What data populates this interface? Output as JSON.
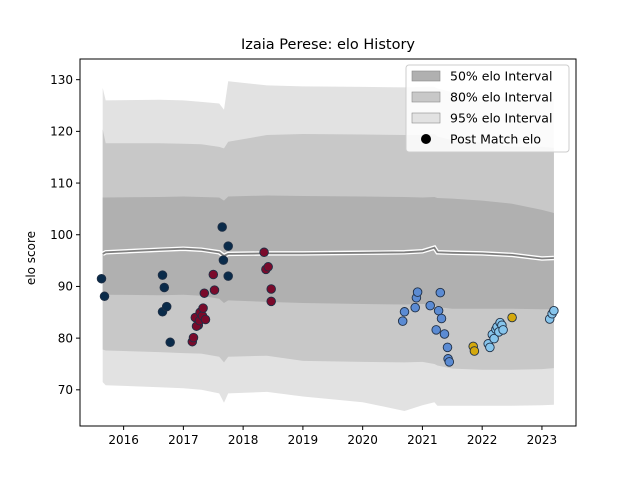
{
  "chart_data": {
    "type": "scatter",
    "title": "Izaia Perese: elo History",
    "ylabel": "elo score",
    "xlabel": "",
    "xlim": [
      2015.27,
      2023.57
    ],
    "ylim": [
      63,
      134
    ],
    "x_ticks": [
      2016,
      2017,
      2018,
      2019,
      2020,
      2021,
      2022,
      2023
    ],
    "x_tick_labels": [
      "2016",
      "2017",
      "2018",
      "2019",
      "2020",
      "2021",
      "2022",
      "2023"
    ],
    "y_ticks": [
      70,
      80,
      90,
      100,
      110,
      120,
      130
    ],
    "y_tick_labels": [
      "70",
      "80",
      "90",
      "100",
      "110",
      "120",
      "130"
    ],
    "legend": {
      "placement": "top-right",
      "entries": [
        "50% elo Interval",
        "80% elo Interval",
        "95% elo Interval",
        "Post Match elo"
      ]
    },
    "colors": {
      "band50": "#b0b0b0",
      "band80": "#c8c8c8",
      "band95": "#e2e2e2",
      "median": "#7f7f7f",
      "median_halo": "#ffffff",
      "marker_edge": "#1f2f45"
    },
    "bands": {
      "x": [
        2015.65,
        2015.7,
        2016.6,
        2017.0,
        2017.3,
        2017.6,
        2017.68,
        2017.75,
        2018.4,
        2019.0,
        2020.0,
        2020.7,
        2021.0,
        2021.2,
        2021.25,
        2021.5,
        2022.0,
        2022.5,
        2023.0,
        2023.2
      ],
      "median": [
        96.3,
        96.6,
        97.1,
        97.3,
        97.1,
        96.6,
        95.9,
        96.3,
        96.4,
        96.4,
        96.5,
        96.6,
        96.8,
        97.5,
        96.6,
        96.5,
        96.4,
        96.1,
        95.4,
        95.5
      ],
      "upper50": [
        107.2,
        107.2,
        107.3,
        107.4,
        107.3,
        107.2,
        106.6,
        107.4,
        107.6,
        107.5,
        107.4,
        107.3,
        107.2,
        107.3,
        107.1,
        107.0,
        106.6,
        106.0,
        104.8,
        104.2
      ],
      "lower50": [
        88.4,
        88.4,
        88.3,
        88.4,
        88.2,
        87.6,
        86.8,
        87.3,
        87.0,
        86.8,
        86.6,
        86.5,
        86.6,
        86.5,
        86.0,
        85.7,
        85.7,
        85.7,
        85.6,
        85.6
      ],
      "upper80": [
        120.4,
        117.7,
        117.7,
        117.6,
        117.5,
        117.0,
        116.7,
        118.0,
        119.3,
        119.5,
        119.4,
        119.3,
        119.3,
        119.5,
        119.0,
        118.3,
        117.8,
        117.0,
        117.0,
        116.8
      ],
      "lower80": [
        77.8,
        77.6,
        77.3,
        77.1,
        77.0,
        76.4,
        75.3,
        76.4,
        76.6,
        75.6,
        75.4,
        75.3,
        75.4,
        75.0,
        74.7,
        74.1,
        73.9,
        73.9,
        74.0,
        74.2
      ],
      "upper95": [
        128.4,
        126.0,
        126.1,
        126.0,
        125.7,
        125.4,
        124.2,
        129.7,
        128.9,
        128.7,
        128.6,
        128.5,
        128.6,
        128.6,
        128.3,
        127.6,
        126.9,
        126.5,
        126.3,
        126.2
      ],
      "lower95": [
        71.5,
        70.9,
        70.5,
        70.3,
        70.0,
        69.3,
        67.5,
        69.3,
        69.6,
        68.7,
        67.6,
        65.9,
        67.0,
        67.6,
        66.9,
        66.9,
        66.9,
        66.9,
        67.0,
        67.1
      ]
    },
    "series": [
      {
        "color": "#0a2b4a",
        "points": [
          [
            2015.63,
            91.5
          ],
          [
            2015.68,
            88.1
          ],
          [
            2016.65,
            92.2
          ],
          [
            2016.68,
            89.8
          ],
          [
            2016.65,
            85.1
          ],
          [
            2016.72,
            86.1
          ],
          [
            2016.78,
            79.2
          ],
          [
            2017.65,
            101.5
          ],
          [
            2017.75,
            97.8
          ],
          [
            2017.67,
            95.1
          ],
          [
            2017.75,
            92.0
          ]
        ]
      },
      {
        "color": "#7a0a2b",
        "points": [
          [
            2017.15,
            79.3
          ],
          [
            2017.17,
            80.1
          ],
          [
            2017.2,
            84.0
          ],
          [
            2017.25,
            82.5
          ],
          [
            2017.22,
            82.3
          ],
          [
            2017.28,
            85.0
          ],
          [
            2017.27,
            83.4
          ],
          [
            2017.32,
            84.3
          ],
          [
            2017.33,
            85.8
          ],
          [
            2017.35,
            88.7
          ],
          [
            2017.37,
            83.6
          ],
          [
            2017.5,
            92.3
          ],
          [
            2017.52,
            89.3
          ],
          [
            2018.35,
            96.6
          ],
          [
            2018.38,
            93.3
          ],
          [
            2018.42,
            93.8
          ],
          [
            2018.47,
            89.5
          ],
          [
            2018.47,
            87.1
          ]
        ]
      },
      {
        "color": "#5b8bd3",
        "points": [
          [
            2020.67,
            83.3
          ],
          [
            2020.7,
            85.1
          ],
          [
            2020.88,
            85.9
          ],
          [
            2020.9,
            87.8
          ],
          [
            2020.92,
            88.9
          ],
          [
            2021.13,
            86.3
          ],
          [
            2021.23,
            81.6
          ],
          [
            2021.27,
            85.3
          ],
          [
            2021.3,
            88.8
          ],
          [
            2021.32,
            83.8
          ],
          [
            2021.37,
            80.8
          ],
          [
            2021.42,
            78.2
          ],
          [
            2021.43,
            76.0
          ],
          [
            2021.45,
            75.4
          ]
        ]
      },
      {
        "color": "#87c5ec",
        "points": [
          [
            2022.1,
            78.9
          ],
          [
            2022.13,
            78.2
          ],
          [
            2022.17,
            80.7
          ],
          [
            2022.2,
            79.9
          ],
          [
            2022.23,
            81.7
          ],
          [
            2022.25,
            82.2
          ],
          [
            2022.28,
            81.2
          ],
          [
            2022.3,
            83.0
          ],
          [
            2022.33,
            82.5
          ],
          [
            2022.35,
            81.6
          ],
          [
            2023.13,
            83.7
          ],
          [
            2023.17,
            84.7
          ],
          [
            2023.2,
            85.3
          ]
        ]
      },
      {
        "color": "#d4a80c",
        "points": [
          [
            2021.85,
            78.4
          ],
          [
            2021.87,
            77.5
          ],
          [
            2022.5,
            84.0
          ]
        ]
      }
    ]
  }
}
